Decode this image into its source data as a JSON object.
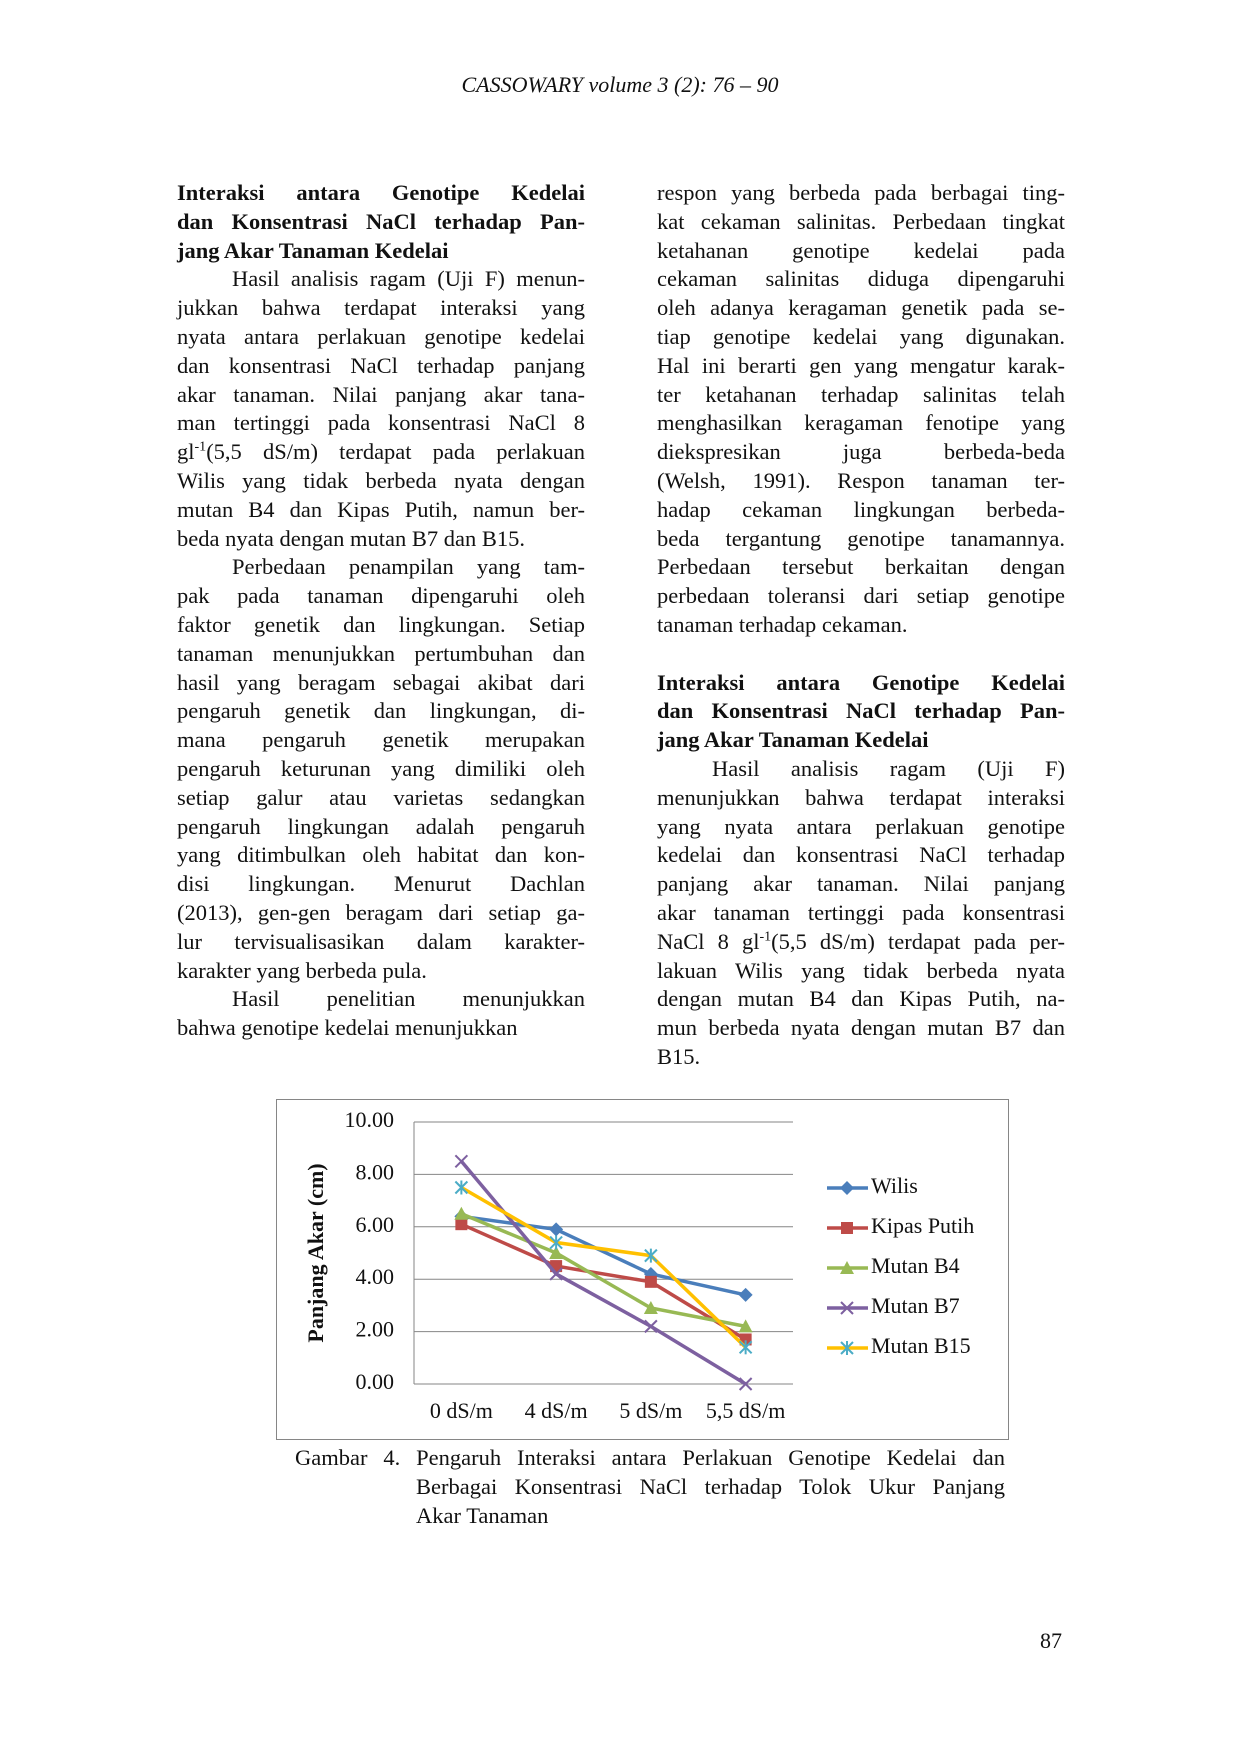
{
  "header": "CASSOWARY volume 3 (2): 76 – 90",
  "left_column": [
    {
      "kind": "heading",
      "lines": [
        "Interaksi antara Genotipe Kedelai",
        "dan Konsentrasi NaCl terhadap Pan-",
        "jang Akar Tanaman Kedelai"
      ]
    },
    {
      "kind": "paragraph",
      "lines": [
        "Hasil analisis ragam (Uji F) menun-",
        "jukkan bahwa terdapat interaksi yang",
        "nyata antara perlakuan genotipe kedelai",
        "dan konsentrasi NaCl terhadap panjang",
        "akar tanaman. Nilai panjang akar tana-",
        "man tertinggi pada konsentrasi NaCl 8",
        [
          "gl",
          {
            "sup": "-1"
          },
          "(5,5 dS/m) terdapat pada perlakuan"
        ],
        "Wilis yang tidak berbeda nyata dengan",
        "mutan B4 dan Kipas Putih, namun ber-",
        "beda nyata dengan mutan B7 dan B15."
      ]
    },
    {
      "kind": "paragraph",
      "lines": [
        "Perbedaan penampilan yang tam-",
        "pak pada tanaman dipengaruhi oleh",
        "faktor genetik dan lingkungan. Setiap",
        "tanaman menunjukkan pertumbuhan dan",
        "hasil yang beragam sebagai akibat dari",
        "pengaruh genetik dan lingkungan, di-",
        "mana pengaruh genetik merupakan",
        "pengaruh keturunan yang dimiliki oleh",
        "setiap galur atau varietas sedangkan",
        "pengaruh lingkungan adalah pengaruh",
        "yang ditimbulkan oleh habitat dan kon-",
        "disi lingkungan. Menurut Dachlan",
        "(2013), gen-gen beragam dari setiap ga-",
        "lur tervisualisasikan dalam karakter-",
        "karakter yang berbeda pula."
      ]
    },
    {
      "kind": "paragraph",
      "lines": [
        "Hasil penelitian menunjukkan",
        "bahwa genotipe kedelai menunjukkan"
      ]
    }
  ],
  "right_column": [
    {
      "kind": "continuation",
      "lines": [
        "respon yang berbeda pada berbagai ting-",
        "kat cekaman salinitas. Perbedaan tingkat",
        "ketahanan genotipe kedelai pada",
        "cekaman salinitas diduga dipengaruhi",
        "oleh adanya keragaman genetik pada se-",
        "tiap genotipe kedelai yang digunakan.",
        "Hal ini berarti gen yang mengatur karak-",
        "ter ketahanan terhadap salinitas telah",
        "menghasilkan keragaman fenotipe yang",
        "diekspresikan juga berbeda-beda",
        "(Welsh, 1991). Respon tanaman ter-",
        "hadap cekaman lingkungan berbeda-",
        "beda tergantung genotipe tanamannya.",
        "Perbedaan tersebut berkaitan dengan",
        "perbedaan toleransi dari setiap genotipe",
        "tanaman terhadap cekaman."
      ]
    },
    {
      "kind": "heading",
      "lines": [
        "Interaksi antara Genotipe Kedelai",
        "dan Konsentrasi NaCl terhadap Pan-",
        "jang Akar Tanaman Kedelai"
      ]
    },
    {
      "kind": "paragraph",
      "lines": [
        "Hasil analisis ragam (Uji F)",
        "menunjukkan bahwa terdapat interaksi",
        "yang nyata antara perlakuan genotipe",
        "kedelai dan konsentrasi NaCl terhadap",
        "panjang akar tanaman. Nilai panjang",
        "akar tanaman tertinggi pada konsentrasi",
        [
          "NaCl 8 gl",
          {
            "sup": "-1"
          },
          "(5,5 dS/m) terdapat pada per-"
        ],
        "lakuan Wilis yang tidak berbeda nyata",
        "dengan mutan B4 dan Kipas Putih, na-",
        "mun berbeda nyata dengan mutan B7 dan",
        "B15."
      ]
    }
  ],
  "chart_data": {
    "type": "line",
    "y_label": "Panjang Akar (cm)",
    "categories": [
      "0 dS/m",
      "4 dS/m",
      "5 dS/m",
      "5,5 dS/m"
    ],
    "ylim": [
      0,
      10
    ],
    "yticks": [
      {
        "value": 0,
        "label": "0.00"
      },
      {
        "value": 2,
        "label": "2.00"
      },
      {
        "value": 4,
        "label": "4.00"
      },
      {
        "value": 6,
        "label": "6.00"
      },
      {
        "value": 8,
        "label": "8.00"
      },
      {
        "value": 10,
        "label": "10.00"
      }
    ],
    "grid": true,
    "legend": "right",
    "series": [
      {
        "name": "Wilis",
        "color": "#4a7ebb",
        "marker": "diamond",
        "values": [
          6.4,
          5.9,
          4.2,
          3.4
        ]
      },
      {
        "name": "Kipas Putih",
        "color": "#be4b48",
        "marker": "square",
        "values": [
          6.1,
          4.5,
          3.9,
          1.7
        ]
      },
      {
        "name": "Mutan B4",
        "color": "#98b954",
        "marker": "triangle",
        "values": [
          6.5,
          5.0,
          2.9,
          2.2
        ]
      },
      {
        "name": "Mutan B7",
        "color": "#7d60a0",
        "marker": "x",
        "values": [
          8.5,
          4.2,
          2.2,
          0.0
        ]
      },
      {
        "name": "Mutan B15",
        "color": "#ffc000",
        "marker": "star",
        "marker_color": "#4bacc6",
        "values": [
          7.5,
          5.4,
          4.9,
          1.4
        ]
      }
    ]
  },
  "caption": [
    "Gambar 4. Pengaruh Interaksi antara Perlakuan Genotipe Kedelai dan",
    "Berbagai Konsentrasi NaCl terhadap Tolok Ukur Panjang",
    "Akar Tanaman"
  ],
  "page_number": "87"
}
